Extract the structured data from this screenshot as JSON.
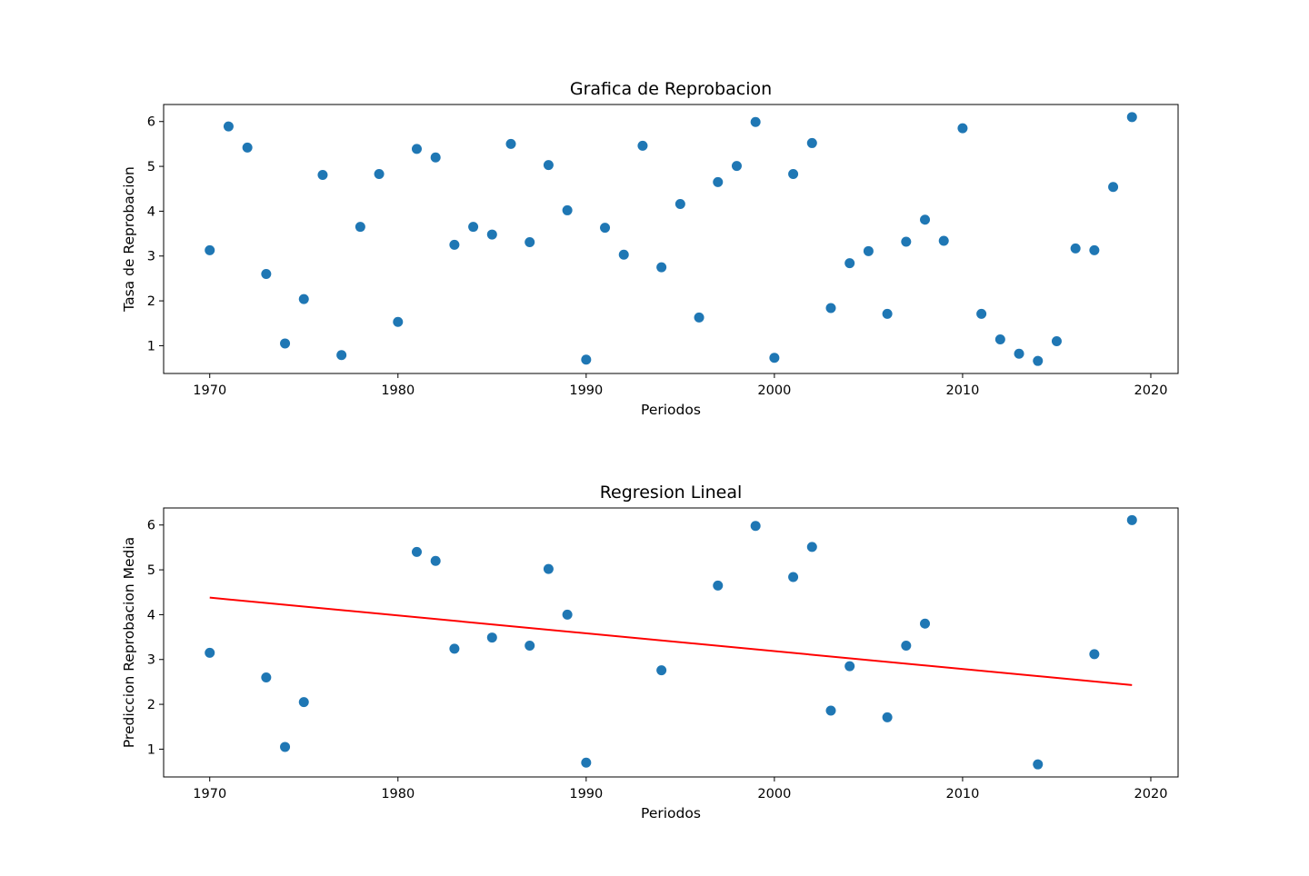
{
  "colors": {
    "point": "#1f77b4",
    "regression_line": "#ff0000",
    "axes": "#000000",
    "background": "#ffffff"
  },
  "chart_data": [
    {
      "type": "scatter",
      "title": "Grafica de Reprobacion",
      "xlabel": "Periodos",
      "ylabel": "Tasa de Reprobacion",
      "xlim": [
        1967.55,
        2021.45
      ],
      "ylim": [
        0.38,
        6.38
      ],
      "xticks": [
        1970,
        1980,
        1990,
        2000,
        2010,
        2020
      ],
      "yticks": [
        1,
        2,
        3,
        4,
        5,
        6
      ],
      "grid": false,
      "points": [
        {
          "x": 1970,
          "y": 3.13
        },
        {
          "x": 1971,
          "y": 5.89
        },
        {
          "x": 1972,
          "y": 5.42
        },
        {
          "x": 1973,
          "y": 2.6
        },
        {
          "x": 1974,
          "y": 1.05
        },
        {
          "x": 1975,
          "y": 2.04
        },
        {
          "x": 1976,
          "y": 4.81
        },
        {
          "x": 1977,
          "y": 0.79
        },
        {
          "x": 1978,
          "y": 3.65
        },
        {
          "x": 1979,
          "y": 4.83
        },
        {
          "x": 1980,
          "y": 1.53
        },
        {
          "x": 1981,
          "y": 5.39
        },
        {
          "x": 1982,
          "y": 5.2
        },
        {
          "x": 1983,
          "y": 3.25
        },
        {
          "x": 1984,
          "y": 3.65
        },
        {
          "x": 1985,
          "y": 3.48
        },
        {
          "x": 1986,
          "y": 5.5
        },
        {
          "x": 1987,
          "y": 3.31
        },
        {
          "x": 1988,
          "y": 5.03
        },
        {
          "x": 1989,
          "y": 4.02
        },
        {
          "x": 1990,
          "y": 0.69
        },
        {
          "x": 1991,
          "y": 3.63
        },
        {
          "x": 1992,
          "y": 3.03
        },
        {
          "x": 1993,
          "y": 5.46
        },
        {
          "x": 1994,
          "y": 2.75
        },
        {
          "x": 1995,
          "y": 4.16
        },
        {
          "x": 1996,
          "y": 1.63
        },
        {
          "x": 1997,
          "y": 4.65
        },
        {
          "x": 1998,
          "y": 5.01
        },
        {
          "x": 1999,
          "y": 5.99
        },
        {
          "x": 2000,
          "y": 0.73
        },
        {
          "x": 2001,
          "y": 4.83
        },
        {
          "x": 2002,
          "y": 5.52
        },
        {
          "x": 2003,
          "y": 1.84
        },
        {
          "x": 2004,
          "y": 2.84
        },
        {
          "x": 2005,
          "y": 3.11
        },
        {
          "x": 2006,
          "y": 1.71
        },
        {
          "x": 2007,
          "y": 3.32
        },
        {
          "x": 2008,
          "y": 3.81
        },
        {
          "x": 2009,
          "y": 3.34
        },
        {
          "x": 2010,
          "y": 5.85
        },
        {
          "x": 2011,
          "y": 1.71
        },
        {
          "x": 2012,
          "y": 1.14
        },
        {
          "x": 2013,
          "y": 0.82
        },
        {
          "x": 2014,
          "y": 0.66
        },
        {
          "x": 2015,
          "y": 1.1
        },
        {
          "x": 2016,
          "y": 3.17
        },
        {
          "x": 2017,
          "y": 3.13
        },
        {
          "x": 2018,
          "y": 4.54
        },
        {
          "x": 2019,
          "y": 6.1
        }
      ]
    },
    {
      "type": "scatter",
      "title": "Regresion Lineal",
      "xlabel": "Periodos",
      "ylabel": "Prediccion Reprobacion Media",
      "xlim": [
        1967.55,
        2021.45
      ],
      "ylim": [
        0.38,
        6.38
      ],
      "xticks": [
        1970,
        1980,
        1990,
        2000,
        2010,
        2020
      ],
      "yticks": [
        1,
        2,
        3,
        4,
        5,
        6
      ],
      "grid": false,
      "points": [
        {
          "x": 1970,
          "y": 3.15
        },
        {
          "x": 1973,
          "y": 2.6
        },
        {
          "x": 1974,
          "y": 1.05
        },
        {
          "x": 1975,
          "y": 2.05
        },
        {
          "x": 1981,
          "y": 5.4
        },
        {
          "x": 1982,
          "y": 5.2
        },
        {
          "x": 1983,
          "y": 3.24
        },
        {
          "x": 1985,
          "y": 3.49
        },
        {
          "x": 1987,
          "y": 3.31
        },
        {
          "x": 1988,
          "y": 5.02
        },
        {
          "x": 1989,
          "y": 4.0
        },
        {
          "x": 1990,
          "y": 0.7
        },
        {
          "x": 1994,
          "y": 2.76
        },
        {
          "x": 1997,
          "y": 4.65
        },
        {
          "x": 1999,
          "y": 5.98
        },
        {
          "x": 2001,
          "y": 4.84
        },
        {
          "x": 2002,
          "y": 5.51
        },
        {
          "x": 2003,
          "y": 1.86
        },
        {
          "x": 2004,
          "y": 2.85
        },
        {
          "x": 2006,
          "y": 1.71
        },
        {
          "x": 2007,
          "y": 3.31
        },
        {
          "x": 2008,
          "y": 3.8
        },
        {
          "x": 2014,
          "y": 0.66
        },
        {
          "x": 2017,
          "y": 3.12
        },
        {
          "x": 2019,
          "y": 6.11
        }
      ],
      "regression_line": {
        "x": [
          1970,
          2019
        ],
        "y": [
          4.38,
          2.43
        ]
      }
    }
  ]
}
